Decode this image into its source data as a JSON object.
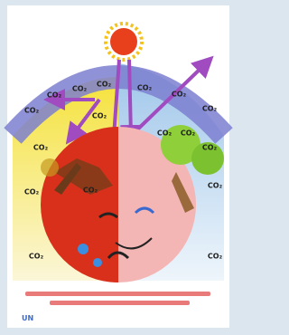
{
  "poster": {
    "co2_labels": [
      "CO₂",
      "CO₂",
      "CO₂",
      "CO₂",
      "CO₂",
      "CO₂",
      "CO₂",
      "CO₂",
      "CO₂",
      "CO₂",
      "CO₂",
      "CO₂",
      "CO₂",
      "CO₂",
      "CO₂",
      "CO₂",
      "CO₂"
    ],
    "logo": "UN"
  }
}
